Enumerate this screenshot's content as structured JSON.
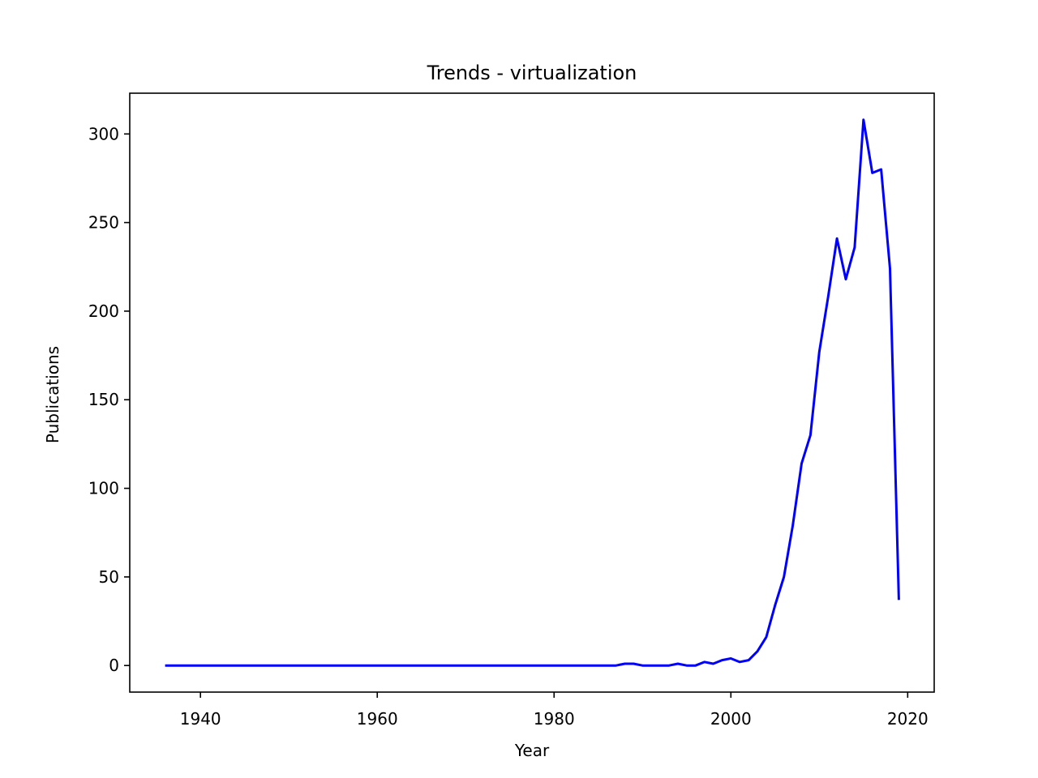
{
  "chart_data": {
    "type": "line",
    "title": "Trends - virtualization",
    "xlabel": "Year",
    "ylabel": "Publications",
    "xlim": [
      1932,
      2023
    ],
    "ylim": [
      -15,
      323
    ],
    "xticks": [
      1940,
      1960,
      1980,
      2000,
      2020
    ],
    "yticks": [
      0,
      50,
      100,
      150,
      200,
      250,
      300
    ],
    "grid": false,
    "series": [
      {
        "color": "#0000ff",
        "x": [
          1936,
          1987,
          1988,
          1989,
          1990,
          1991,
          1992,
          1993,
          1994,
          1995,
          1996,
          1997,
          1998,
          1999,
          2000,
          2001,
          2002,
          2003,
          2004,
          2005,
          2006,
          2007,
          2008,
          2009,
          2010,
          2011,
          2012,
          2013,
          2014,
          2015,
          2016,
          2017,
          2018,
          2019
        ],
        "y": [
          0,
          0,
          1,
          1,
          0,
          0,
          0,
          0,
          1,
          0,
          0,
          2,
          1,
          3,
          4,
          2,
          3,
          8,
          16,
          34,
          50,
          79,
          114,
          130,
          177,
          208,
          241,
          218,
          236,
          308,
          278,
          280,
          224,
          37
        ]
      }
    ]
  }
}
